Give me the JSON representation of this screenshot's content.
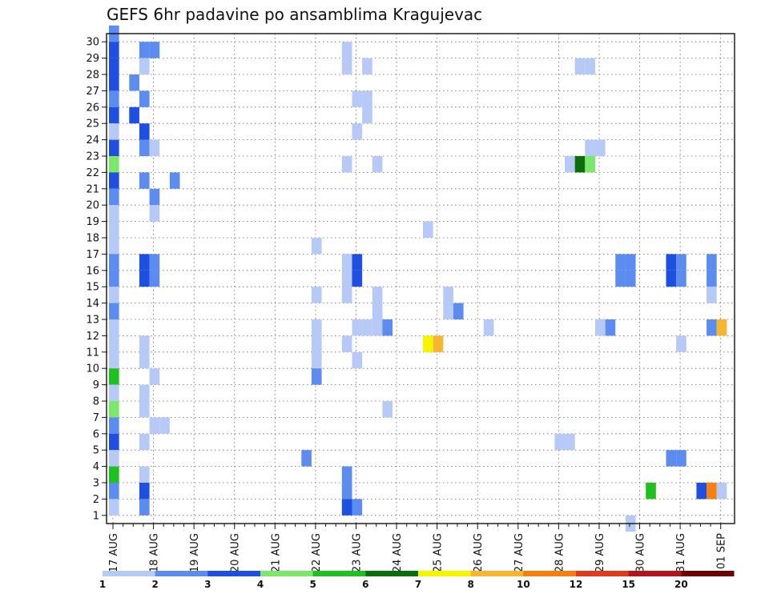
{
  "chart_data": {
    "type": "heatmap",
    "title": "GEFS 6hr padavine po ansamblima Kragujevac",
    "xlabel": "",
    "ylabel": "",
    "x_ticks": [
      "17 AUG",
      "18 AUG",
      "19 AUG",
      "20 AUG",
      "21 AUG",
      "22 AUG",
      "23 AUG",
      "24 AUG",
      "25 AUG",
      "26 AUG",
      "27 AUG",
      "28 AUG",
      "29 AUG",
      "30 AUG",
      "31 AUG",
      "01 SEP"
    ],
    "x_step_hours": 6,
    "y_ticks": [
      1,
      2,
      3,
      4,
      5,
      6,
      7,
      8,
      9,
      10,
      11,
      12,
      13,
      14,
      15,
      16,
      17,
      18,
      19,
      20,
      21,
      22,
      23,
      24,
      25,
      26,
      27,
      28,
      29,
      30
    ],
    "ylim": [
      0,
      30
    ],
    "grid": true,
    "legend": {
      "placement": "bottom",
      "labels": [
        "1",
        "2",
        "3",
        "4",
        "5",
        "6",
        "7",
        "8",
        "10",
        "12",
        "15",
        "20"
      ],
      "colors": [
        "#b7c9f7",
        "#5c8cf0",
        "#1f4fe0",
        "#7be86a",
        "#20c020",
        "#0b6e0b",
        "#f5f500",
        "#f7b530",
        "#f77e10",
        "#e03a1a",
        "#b0161c",
        "#6e0000"
      ]
    },
    "colors": [
      "#b7c9f7",
      "#5c8cf0",
      "#1f4fe0",
      "#7be86a",
      "#20c020",
      "#0b6e0b",
      "#f5f500",
      "#f7b530",
      "#f77e10",
      "#e03a1a",
      "#b0161c",
      "#6e0000"
    ],
    "cells_note": "each cell: [member, time_step(6h from 17 AUG 00Z), color_class 1-12]",
    "cells": [
      [
        30,
        0,
        2
      ],
      [
        29,
        0,
        3
      ],
      [
        28,
        0,
        3
      ],
      [
        27,
        0,
        3
      ],
      [
        26,
        0,
        2
      ],
      [
        25,
        0,
        3
      ],
      [
        24,
        0,
        1
      ],
      [
        23,
        0,
        3
      ],
      [
        22,
        0,
        4
      ],
      [
        21,
        0,
        3
      ],
      [
        20,
        0,
        2
      ],
      [
        19,
        0,
        1
      ],
      [
        18,
        0,
        1
      ],
      [
        17,
        0,
        1
      ],
      [
        16,
        0,
        2
      ],
      [
        15,
        0,
        2
      ],
      [
        14,
        0,
        1
      ],
      [
        13,
        0,
        2
      ],
      [
        12,
        0,
        1
      ],
      [
        11,
        0,
        1
      ],
      [
        10,
        0,
        1
      ],
      [
        9,
        0,
        5
      ],
      [
        8,
        0,
        1
      ],
      [
        7,
        0,
        4
      ],
      [
        6,
        0,
        2
      ],
      [
        5,
        0,
        3
      ],
      [
        4,
        0,
        1
      ],
      [
        3,
        0,
        5
      ],
      [
        2,
        0,
        2
      ],
      [
        1,
        0,
        1
      ],
      [
        27,
        2,
        2
      ],
      [
        25,
        2,
        3
      ],
      [
        29,
        3,
        2
      ],
      [
        29,
        4,
        2
      ],
      [
        28,
        3,
        1
      ],
      [
        26,
        3,
        2
      ],
      [
        24,
        3,
        3
      ],
      [
        23,
        3,
        2
      ],
      [
        23,
        4,
        1
      ],
      [
        21,
        3,
        2
      ],
      [
        20,
        4,
        2
      ],
      [
        19,
        4,
        1
      ],
      [
        16,
        3,
        3
      ],
      [
        15,
        3,
        3
      ],
      [
        16,
        4,
        2
      ],
      [
        15,
        4,
        2
      ],
      [
        11,
        3,
        1
      ],
      [
        10,
        3,
        1
      ],
      [
        9,
        4,
        1
      ],
      [
        8,
        3,
        1
      ],
      [
        7,
        3,
        1
      ],
      [
        6,
        4,
        1
      ],
      [
        6,
        5,
        1
      ],
      [
        5,
        3,
        1
      ],
      [
        3,
        3,
        1
      ],
      [
        2,
        3,
        3
      ],
      [
        1,
        3,
        2
      ],
      [
        21,
        6,
        2
      ],
      [
        4,
        19,
        2
      ],
      [
        17,
        20,
        1
      ],
      [
        14,
        20,
        1
      ],
      [
        11,
        20,
        1
      ],
      [
        10,
        20,
        1
      ],
      [
        9,
        20,
        2
      ],
      [
        12,
        20,
        1
      ],
      [
        29,
        23,
        1
      ],
      [
        28,
        23,
        1
      ],
      [
        22,
        23,
        1
      ],
      [
        16,
        23,
        1
      ],
      [
        15,
        23,
        1
      ],
      [
        14,
        23,
        1
      ],
      [
        11,
        23,
        1
      ],
      [
        3,
        23,
        2
      ],
      [
        2,
        23,
        2
      ],
      [
        1,
        23,
        3
      ],
      [
        26,
        24,
        1
      ],
      [
        26,
        25,
        1
      ],
      [
        24,
        24,
        1
      ],
      [
        16,
        24,
        3
      ],
      [
        15,
        24,
        3
      ],
      [
        12,
        24,
        1
      ],
      [
        12,
        25,
        1
      ],
      [
        12,
        26,
        1
      ],
      [
        10,
        24,
        1
      ],
      [
        1,
        24,
        2
      ],
      [
        28,
        25,
        1
      ],
      [
        25,
        25,
        1
      ],
      [
        22,
        26,
        1
      ],
      [
        14,
        26,
        1
      ],
      [
        13,
        26,
        1
      ],
      [
        12,
        27,
        2
      ],
      [
        7,
        27,
        1
      ],
      [
        18,
        31,
        1
      ],
      [
        11,
        31,
        7
      ],
      [
        11,
        32,
        8
      ],
      [
        14,
        33,
        1
      ],
      [
        13,
        33,
        1
      ],
      [
        13,
        34,
        2
      ],
      [
        12,
        37,
        1
      ],
      [
        5,
        44,
        1
      ],
      [
        5,
        45,
        1
      ],
      [
        28,
        46,
        1
      ],
      [
        28,
        47,
        1
      ],
      [
        22,
        45,
        1
      ],
      [
        22,
        46,
        6
      ],
      [
        22,
        47,
        4
      ],
      [
        23,
        47,
        1
      ],
      [
        23,
        48,
        1
      ],
      [
        12,
        48,
        1
      ],
      [
        12,
        49,
        2
      ],
      [
        16,
        50,
        2
      ],
      [
        15,
        50,
        2
      ],
      [
        16,
        51,
        2
      ],
      [
        15,
        51,
        2
      ],
      [
        0,
        51,
        1
      ],
      [
        2,
        53,
        5
      ],
      [
        16,
        55,
        3
      ],
      [
        15,
        55,
        3
      ],
      [
        16,
        56,
        2
      ],
      [
        15,
        56,
        2
      ],
      [
        11,
        56,
        1
      ],
      [
        4,
        55,
        2
      ],
      [
        4,
        56,
        2
      ],
      [
        16,
        59,
        2
      ],
      [
        15,
        59,
        2
      ],
      [
        14,
        59,
        1
      ],
      [
        12,
        59,
        2
      ],
      [
        12,
        60,
        8
      ],
      [
        2,
        58,
        3
      ],
      [
        2,
        59,
        9
      ],
      [
        2,
        60,
        1
      ]
    ]
  }
}
